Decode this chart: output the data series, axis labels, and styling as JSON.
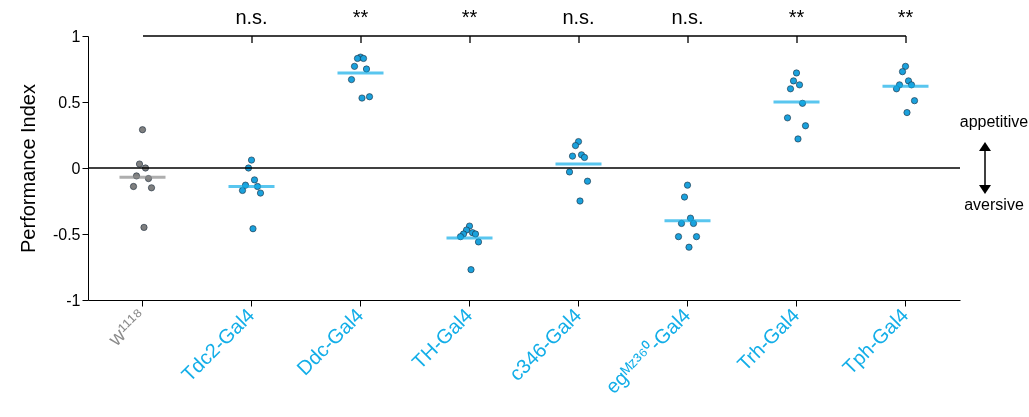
{
  "chart_data": {
    "type": "scatter",
    "ylabel": "Performance Index",
    "categories": [
      "w¹¹¹⁸",
      "Tdc2-Gal4",
      "Ddc-Gal4",
      "TH-Gal4",
      "c346-Gal4",
      "egᴹᶻ³⁶⁰-Gal4",
      "Trh-Gal4",
      "Tph-Gal4"
    ],
    "ylim": [
      -1,
      1
    ],
    "yticks": [
      -1,
      -0.5,
      0,
      0.5,
      1
    ],
    "series": [
      {
        "type": "scatter",
        "marker": "circle",
        "x": [
          "w¹¹¹⁸",
          "w¹¹¹⁸",
          "w¹¹¹⁸",
          "w¹¹¹⁸",
          "w¹¹¹⁸",
          "w¹¹¹⁸",
          "w¹¹¹⁸",
          "w¹¹¹⁸",
          "Tdc2-Gal4",
          "Tdc2-Gal4",
          "Tdc2-Gal4",
          "Tdc2-Gal4",
          "Tdc2-Gal4",
          "Tdc2-Gal4",
          "Tdc2-Gal4",
          "Tdc2-Gal4",
          "Ddc-Gal4",
          "Ddc-Gal4",
          "Ddc-Gal4",
          "Ddc-Gal4",
          "Ddc-Gal4",
          "Ddc-Gal4",
          "Ddc-Gal4",
          "Ddc-Gal4",
          "TH-Gal4",
          "TH-Gal4",
          "TH-Gal4",
          "TH-Gal4",
          "TH-Gal4",
          "TH-Gal4",
          "TH-Gal4",
          "TH-Gal4",
          "c346-Gal4",
          "c346-Gal4",
          "c346-Gal4",
          "c346-Gal4",
          "c346-Gal4",
          "c346-Gal4",
          "c346-Gal4",
          "c346-Gal4",
          "egᴹᶻ³⁶⁰-Gal4",
          "egᴹᶻ³⁶⁰-Gal4",
          "egᴹᶻ³⁶⁰-Gal4",
          "egᴹᶻ³⁶⁰-Gal4",
          "egᴹᶻ³⁶⁰-Gal4",
          "egᴹᶻ³⁶⁰-Gal4",
          "egᴹᶻ³⁶⁰-Gal4",
          "egᴹᶻ³⁶⁰-Gal4",
          "Trh-Gal4",
          "Trh-Gal4",
          "Trh-Gal4",
          "Trh-Gal4",
          "Trh-Gal4",
          "Trh-Gal4",
          "Trh-Gal4",
          "Trh-Gal4",
          "Tph-Gal4",
          "Tph-Gal4",
          "Tph-Gal4",
          "Tph-Gal4",
          "Tph-Gal4",
          "Tph-Gal4",
          "Tph-Gal4",
          "Tph-Gal4"
        ],
        "values": [
          0.29,
          0.03,
          0.0,
          -0.06,
          -0.08,
          -0.14,
          -0.15,
          -0.45,
          0.06,
          0.0,
          -0.09,
          -0.13,
          -0.14,
          -0.17,
          -0.19,
          -0.46,
          0.84,
          0.83,
          0.83,
          0.77,
          0.75,
          0.67,
          0.54,
          0.53,
          -0.44,
          -0.47,
          -0.49,
          -0.5,
          -0.5,
          -0.52,
          -0.56,
          -0.77,
          0.2,
          0.17,
          0.1,
          0.09,
          0.08,
          -0.03,
          -0.1,
          -0.25,
          -0.13,
          -0.22,
          -0.38,
          -0.42,
          -0.42,
          -0.52,
          -0.52,
          -0.6,
          0.72,
          0.66,
          0.63,
          0.6,
          0.49,
          0.38,
          0.32,
          0.22,
          0.77,
          0.73,
          0.66,
          0.63,
          0.63,
          0.6,
          0.51,
          0.42
        ],
        "colors": [
          "#7f7f7f",
          "#7f7f7f",
          "#7f7f7f",
          "#7f7f7f",
          "#7f7f7f",
          "#7f7f7f",
          "#7f7f7f",
          "#7f7f7f",
          "#1ba1dc",
          "#1ba1dc",
          "#1ba1dc",
          "#1ba1dc",
          "#1ba1dc",
          "#1ba1dc",
          "#1ba1dc",
          "#1ba1dc",
          "#1ba1dc",
          "#1ba1dc",
          "#1ba1dc",
          "#1ba1dc",
          "#1ba1dc",
          "#1ba1dc",
          "#1ba1dc",
          "#1ba1dc",
          "#1ba1dc",
          "#1ba1dc",
          "#1ba1dc",
          "#1ba1dc",
          "#1ba1dc",
          "#1ba1dc",
          "#1ba1dc",
          "#1ba1dc",
          "#1ba1dc",
          "#1ba1dc",
          "#1ba1dc",
          "#1ba1dc",
          "#1ba1dc",
          "#1ba1dc",
          "#1ba1dc",
          "#1ba1dc",
          "#1ba1dc",
          "#1ba1dc",
          "#1ba1dc",
          "#1ba1dc",
          "#1ba1dc",
          "#1ba1dc",
          "#1ba1dc",
          "#1ba1dc",
          "#1ba1dc",
          "#1ba1dc",
          "#1ba1dc",
          "#1ba1dc",
          "#1ba1dc",
          "#1ba1dc",
          "#1ba1dc",
          "#1ba1dc",
          "#1ba1dc",
          "#1ba1dc",
          "#1ba1dc",
          "#1ba1dc",
          "#1ba1dc",
          "#1ba1dc",
          "#1ba1dc",
          "#1ba1dc"
        ]
      },
      {
        "type": "box",
        "boxes": [
          {
            "low": -0.07,
            "q1": -0.07,
            "median": -0.07,
            "q3": -0.07,
            "high": -0.07
          },
          {
            "low": -0.14,
            "q1": -0.14,
            "median": -0.14,
            "q3": -0.14,
            "high": -0.14
          },
          {
            "low": 0.72,
            "q1": 0.72,
            "median": 0.72,
            "q3": 0.72,
            "high": 0.72
          },
          {
            "low": -0.53,
            "q1": -0.53,
            "median": -0.53,
            "q3": -0.53,
            "high": -0.53
          },
          {
            "low": 0.03,
            "q1": 0.03,
            "median": 0.03,
            "q3": 0.03,
            "high": 0.03
          },
          {
            "low": -0.4,
            "q1": -0.4,
            "median": -0.4,
            "q3": -0.4,
            "high": -0.4
          },
          {
            "low": 0.5,
            "q1": 0.5,
            "median": 0.5,
            "q3": 0.5,
            "high": 0.5
          },
          {
            "low": 0.62,
            "q1": 0.62,
            "median": 0.62,
            "q3": 0.62,
            "high": 0.62
          }
        ],
        "colors": [
          "#8c8c8c",
          "#13aee8",
          "#13aee8",
          "#13aee8",
          "#13aee8",
          "#13aee8",
          "#13aee8",
          "#13aee8"
        ]
      }
    ],
    "ref_lines": [
      {
        "axis": "y",
        "value": 0,
        "color": "#000000"
      }
    ],
    "annotations": [
      {
        "text": "n.s.",
        "x": "Tdc2-Gal4"
      },
      {
        "text": "**",
        "x": "Ddc-Gal4"
      },
      {
        "text": "**",
        "x": "TH-Gal4"
      },
      {
        "text": "n.s.",
        "x": "c346-Gal4"
      },
      {
        "text": "n.s.",
        "x": "egᴹᶻ³⁶⁰-Gal4"
      },
      {
        "text": "**",
        "x": "Trh-Gal4"
      },
      {
        "text": "**",
        "x": "Tph-Gal4"
      },
      "appetitive",
      "aversive"
    ]
  }
}
